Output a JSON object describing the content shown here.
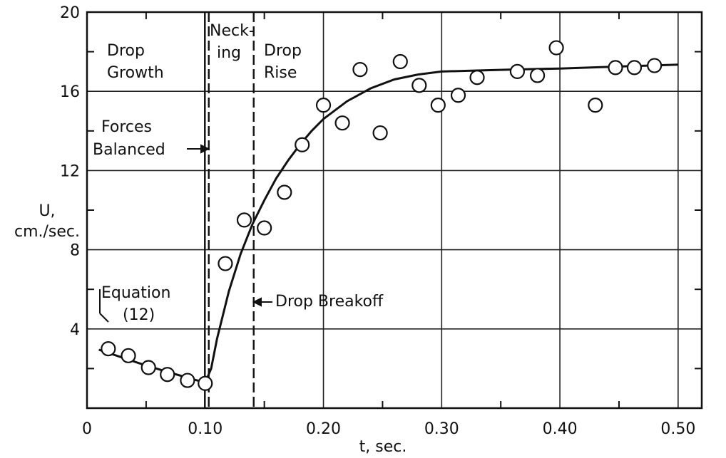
{
  "chart_data": {
    "type": "scatter",
    "xlabel": "t, sec.",
    "ylabel_line1": "U,",
    "ylabel_line2": "cm./sec.",
    "xlim": [
      0,
      0.52
    ],
    "ylim": [
      0,
      20
    ],
    "x_ticks": [
      0,
      0.1,
      0.2,
      0.3,
      0.4,
      0.5
    ],
    "x_tick_labels": [
      "0",
      "0.10",
      "0.20",
      "0.30",
      "0.40",
      "0.50"
    ],
    "y_ticks": [
      4,
      8,
      12,
      16,
      20
    ],
    "y_tick_labels": [
      "4",
      "8",
      "12",
      "16",
      "20"
    ],
    "grid": true,
    "series": [
      {
        "kind": "points",
        "x": [
          0.018,
          0.035,
          0.052,
          0.068,
          0.085,
          0.1,
          0.117,
          0.133,
          0.15,
          0.167,
          0.182,
          0.2,
          0.216,
          0.231,
          0.248,
          0.265,
          0.281,
          0.297,
          0.314,
          0.33,
          0.364,
          0.381,
          0.397,
          0.43,
          0.447,
          0.463,
          0.48
        ],
        "y": [
          3.0,
          2.65,
          2.05,
          1.7,
          1.4,
          1.25,
          7.3,
          9.5,
          9.1,
          10.9,
          13.3,
          15.3,
          14.4,
          17.1,
          13.9,
          17.5,
          16.3,
          15.3,
          15.8,
          16.7,
          17.0,
          16.8,
          18.2,
          15.3,
          17.2,
          17.2,
          17.3
        ]
      },
      {
        "kind": "curve",
        "x": [
          0.01,
          0.03,
          0.05,
          0.07,
          0.09,
          0.1,
          0.105,
          0.11,
          0.12,
          0.13,
          0.14,
          0.15,
          0.16,
          0.17,
          0.18,
          0.19,
          0.2,
          0.22,
          0.24,
          0.26,
          0.28,
          0.3,
          0.33,
          0.36,
          0.4,
          0.45,
          0.5
        ],
        "y": [
          2.95,
          2.55,
          2.15,
          1.8,
          1.45,
          1.3,
          2.0,
          3.5,
          5.9,
          7.8,
          9.3,
          10.5,
          11.6,
          12.5,
          13.3,
          14.0,
          14.6,
          15.5,
          16.15,
          16.6,
          16.85,
          17.0,
          17.05,
          17.1,
          17.15,
          17.25,
          17.35
        ]
      }
    ],
    "vlines": [
      0.103,
      0.141
    ],
    "annotations": {
      "drop_growth_1": "Drop",
      "drop_growth_2": "Growth",
      "necking_1": "Neck-",
      "necking_2": "ing",
      "drop_rise_1": "Drop",
      "drop_rise_2": "Rise",
      "forces_1": "Forces",
      "forces_2": "Balanced",
      "equation_1": "Equation",
      "equation_2": "(12)",
      "breakoff": "Drop Breakoff"
    }
  }
}
